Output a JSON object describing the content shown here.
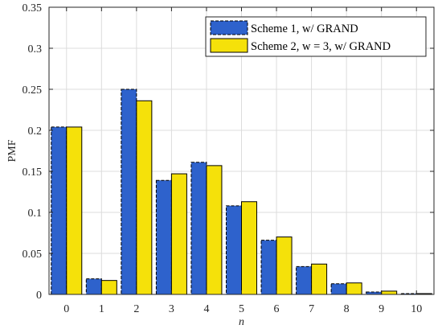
{
  "chart_data": {
    "type": "bar",
    "xlabel": "n",
    "ylabel": "PMF",
    "categories": [
      "0",
      "1",
      "2",
      "3",
      "4",
      "5",
      "6",
      "7",
      "8",
      "9",
      "10"
    ],
    "ylim": [
      0,
      0.35
    ],
    "yticks": [
      "0",
      "0.05",
      "0.1",
      "0.15",
      "0.2",
      "0.25",
      "0.3",
      "0.35"
    ],
    "grid": true,
    "legend_position": "top-right",
    "series": [
      {
        "name": "Scheme 1, w/ GRAND",
        "color": "#2e62cc",
        "edge": "dashed",
        "values": [
          0.204,
          0.019,
          0.25,
          0.139,
          0.161,
          0.108,
          0.066,
          0.034,
          0.013,
          0.003,
          0.001
        ]
      },
      {
        "name": "Scheme 2, w = 3, w/ GRAND",
        "color": "#f5e10a",
        "edge": "solid",
        "values": [
          0.204,
          0.017,
          0.236,
          0.147,
          0.157,
          0.113,
          0.07,
          0.037,
          0.014,
          0.004,
          0.001
        ]
      }
    ]
  }
}
